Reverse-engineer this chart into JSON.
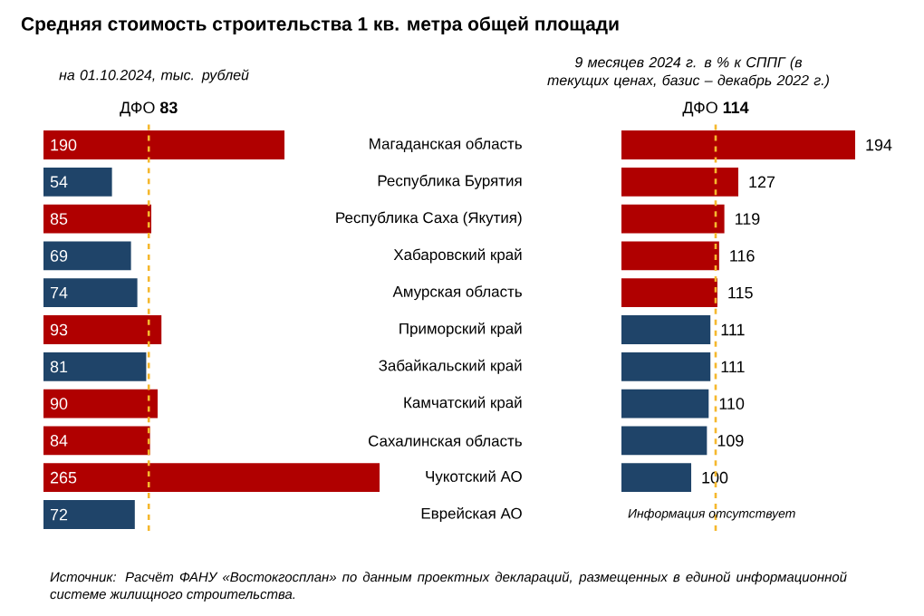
{
  "chart_data": [
    {
      "type": "bar",
      "orientation": "horizontal",
      "title": "Средняя стоимость строительства 1 кв. метра общей площади",
      "subtitle": "на 01.10.2024, тыс. рублей",
      "categories": [
        "Магаданская область",
        "Республика Бурятия",
        "Республика Саха (Якутия)",
        "Хабаровский край",
        "Амурская область",
        "Приморский край",
        "Забайкальский край",
        "Камчатский край",
        "Сахалинская область",
        "Чукотский АО",
        "Еврейская АО"
      ],
      "values": [
        190,
        54,
        85,
        69,
        74,
        93,
        81,
        90,
        84,
        265,
        72
      ],
      "colors": [
        "#b00000",
        "#1f4469",
        "#b00000",
        "#1f4469",
        "#1f4469",
        "#b00000",
        "#1f4469",
        "#b00000",
        "#b00000",
        "#b00000",
        "#1f4469"
      ],
      "xlim": [
        0,
        265
      ],
      "tick_labels": "y",
      "data_labels": true,
      "ref_lines": [
        {
          "axis": "x",
          "value": 83,
          "label": "ДФО **83**",
          "color": "#f5b82e",
          "line_style": "dashed"
        }
      ],
      "annotations": [
        "Источник: Расчёт ФАНУ «Востокгосплан» по данным проектных деклараций, размещенных в единой информационной системе жилищного строительства."
      ]
    },
    {
      "type": "bar",
      "orientation": "horizontal",
      "subtitle": "9 месяцев 2024 г. в % к СППГ (в текущих ценах, базис – декабрь 2022 г.)",
      "categories": [
        null,
        null,
        null,
        null,
        null,
        null,
        null,
        null,
        null,
        null,
        null
      ],
      "values": [
        194,
        127,
        119,
        116,
        115,
        111,
        111,
        110,
        109,
        100,
        null
      ],
      "colors": [
        "#b00000",
        "#b00000",
        "#b00000",
        "#b00000",
        "#b00000",
        "#1f4469",
        "#1f4469",
        "#1f4469",
        "#1f4469",
        "#1f4469",
        null
      ],
      "xlim": [
        60,
        194
      ],
      "tick_labels": false,
      "data_labels": true,
      "ref_lines": [
        {
          "axis": "x",
          "value": 114,
          "label": "ДФО **114**",
          "color": "#f5b82e",
          "line_style": "dashed"
        }
      ],
      "annotations": [
        "Информация отсутствует"
      ]
    }
  ]
}
